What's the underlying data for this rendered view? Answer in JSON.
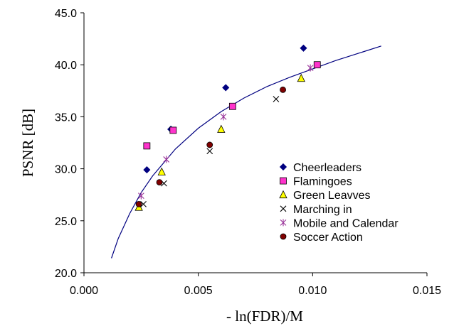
{
  "chart_data": {
    "type": "scatter",
    "xlabel": "- ln(FDR)/M",
    "ylabel": "PSNR [dB]",
    "xlim": [
      0.0,
      0.015
    ],
    "ylim": [
      20.0,
      45.0
    ],
    "x_ticks": [
      "0.000",
      "0.005",
      "0.010",
      "0.015"
    ],
    "y_ticks": [
      "20.0",
      "25.0",
      "30.0",
      "35.0",
      "40.0",
      "45.0"
    ],
    "grid": false,
    "legend_position": "right, lower-middle",
    "series": [
      {
        "name": "Cheerleaders",
        "marker": "diamond",
        "color": "#000080",
        "points": [
          [
            0.00275,
            29.9
          ],
          [
            0.0038,
            33.8
          ],
          [
            0.0062,
            37.8
          ],
          [
            0.0096,
            41.6
          ]
        ]
      },
      {
        "name": "Flamingoes",
        "marker": "square",
        "color": "#ff33cc",
        "points": [
          [
            0.00275,
            32.2
          ],
          [
            0.0039,
            33.7
          ],
          [
            0.0065,
            36.0
          ],
          [
            0.0102,
            40.0
          ]
        ]
      },
      {
        "name": "Green Leavves",
        "marker": "triangle",
        "color": "#ffff00",
        "points": [
          [
            0.0024,
            26.3
          ],
          [
            0.0034,
            29.7
          ],
          [
            0.006,
            33.8
          ],
          [
            0.0095,
            38.7
          ]
        ]
      },
      {
        "name": "Marching in",
        "marker": "x",
        "color": "#000000",
        "points": [
          [
            0.0026,
            26.6
          ],
          [
            0.0035,
            28.6
          ],
          [
            0.0055,
            31.7
          ],
          [
            0.0084,
            36.7
          ]
        ]
      },
      {
        "name": "Mobile and Calendar",
        "marker": "star",
        "color": "#993399",
        "points": [
          [
            0.0025,
            27.4
          ],
          [
            0.0036,
            30.9
          ],
          [
            0.0061,
            35.0
          ],
          [
            0.0099,
            39.7
          ]
        ]
      },
      {
        "name": "Soccer Action",
        "marker": "circle",
        "color": "#800000",
        "points": [
          [
            0.0024,
            26.6
          ],
          [
            0.0033,
            28.7
          ],
          [
            0.0055,
            32.3
          ],
          [
            0.0087,
            37.6
          ]
        ]
      }
    ],
    "fit_curve": {
      "color": "#000080",
      "x": [
        0.0012,
        0.0015,
        0.002,
        0.0025,
        0.003,
        0.004,
        0.005,
        0.006,
        0.007,
        0.008,
        0.009,
        0.01,
        0.011,
        0.012,
        0.013
      ],
      "y": [
        21.4,
        23.3,
        25.7,
        27.7,
        29.3,
        31.9,
        33.9,
        35.5,
        36.8,
        37.9,
        38.8,
        39.6,
        40.4,
        41.1,
        41.8
      ]
    }
  }
}
